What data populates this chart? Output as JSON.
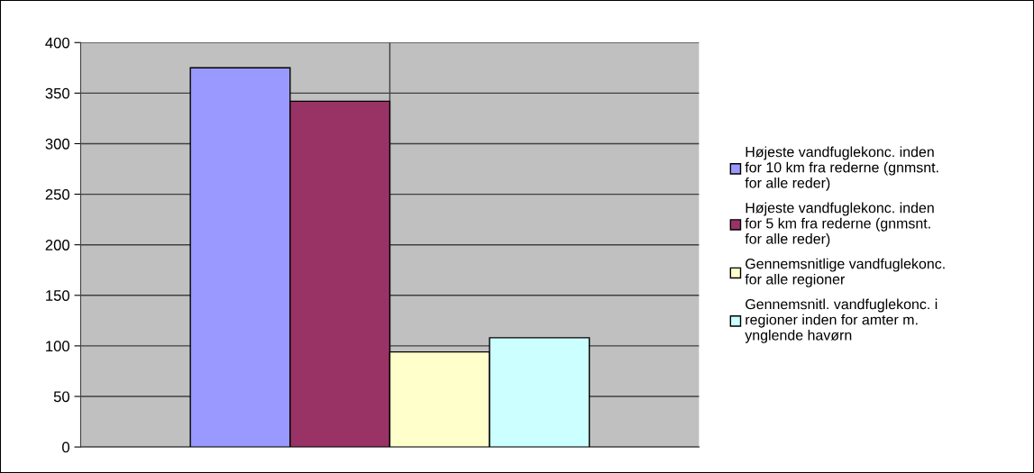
{
  "chart_data": {
    "type": "bar",
    "categories": [
      null
    ],
    "series": [
      {
        "name": "Højeste vandfuglekonc. inden for 10 km fra rederne (gnmsnt. for alle reder)",
        "color": "#9999ff",
        "values": [
          375
        ]
      },
      {
        "name": "Højeste vandfuglekonc. inden for 5 km fra rederne (gnmsnt. for alle reder)",
        "color": "#993366",
        "values": [
          342
        ]
      },
      {
        "name": "Gennemsnitlige vandfuglekonc. for alle regioner",
        "color": "#ffffcc",
        "values": [
          94
        ]
      },
      {
        "name": "Gennemsnitl. vandfuglekonc. i regioner inden for amter m. ynglende havørn",
        "color": "#ccffff",
        "values": [
          108
        ]
      }
    ],
    "ylim": [
      0,
      400
    ],
    "yticks": [
      0,
      50,
      100,
      150,
      200,
      250,
      300,
      350,
      400
    ],
    "grid": true,
    "legend": "right"
  }
}
